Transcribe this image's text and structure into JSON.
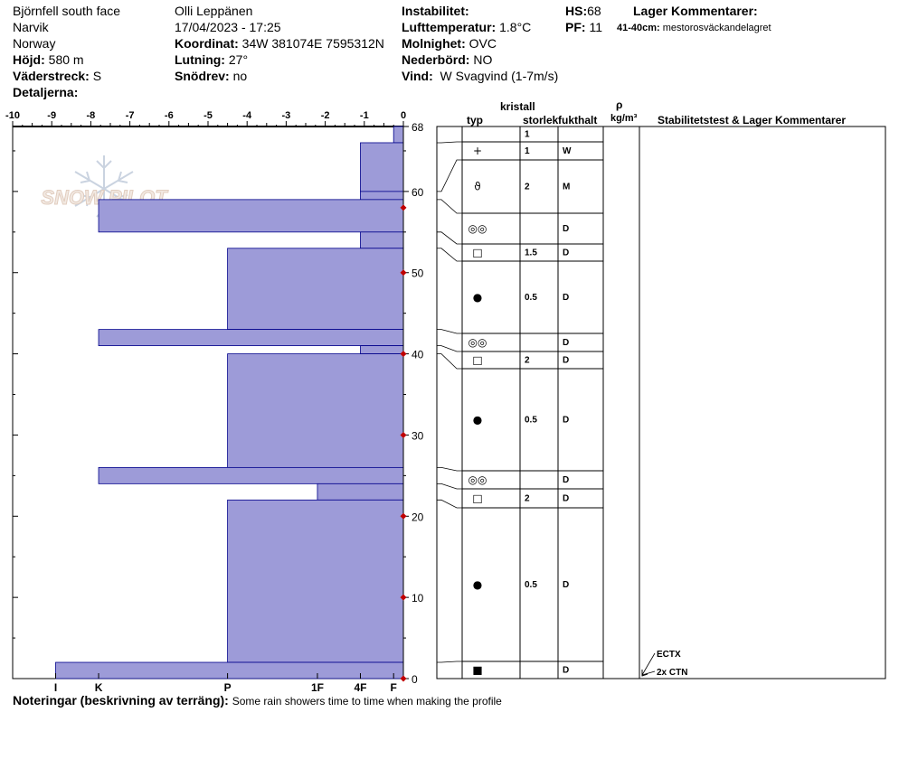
{
  "header": {
    "location": "Björnfell south face",
    "region": "Narvik",
    "country": "Norway",
    "elevation_label": "Höjd:",
    "elevation_value": "580 m",
    "aspect_label": "Väderstreck:",
    "aspect_value": "S",
    "details_label": "Detaljerna:",
    "observer": "Olli Leppänen",
    "datetime": "17/04/2023 - 17:25",
    "coord_label": "Koordinat:",
    "coord_value": "34W 381074E 7595312N",
    "slope_label": "Lutning:",
    "slope_value": "27°",
    "drift_label": "Snödrev:",
    "drift_value": "no",
    "instability_label": "Instabilitet:",
    "airtemp_label": "Lufttemperatur:",
    "airtemp_value": "1.8°C",
    "cloud_label": "Molnighet:",
    "cloud_value": "OVC",
    "precip_label": "Nederbörd:",
    "precip_value": "NO",
    "wind_label": "Vind:",
    "wind_value": "W Svagvind (1-7m/s)",
    "hs_label": "HS:",
    "hs_value": "68",
    "pf_label": "PF:",
    "pf_value": "11",
    "layer_comments_label": "Lager Kommentarer:",
    "layer_comment_depth": "41-40cm:",
    "layer_comment_text": "mestorosväckandelagret"
  },
  "columns": {
    "crystal": "kristall",
    "type": "typ",
    "size": "storlek",
    "moisture": "fukthalt",
    "rho": "ρ",
    "density_unit": "kg/m³",
    "stability": "Stabilitetstest & Lager Kommentarer"
  },
  "watermark": "SNOW PILOT",
  "footer": {
    "notes_label": "Noteringar (beskrivning av terräng):",
    "notes_text": "Some rain showers time to time when making the profile"
  },
  "chart_data": {
    "type": "bar",
    "orientation": "horizontal",
    "xlabel": "",
    "ylabel": "",
    "top_axis_ticks": [
      -10,
      -9,
      -8,
      -7,
      -6,
      -5,
      -4,
      -3,
      -2,
      -1,
      0
    ],
    "xlim": [
      -10,
      0
    ],
    "hardness_labels": [
      "I",
      "K",
      "P",
      "1F",
      "4F",
      "F"
    ],
    "hardness_values": [
      -8.9,
      -7.8,
      -4.5,
      -2.2,
      -1.1,
      -0.25
    ],
    "ylim": [
      0,
      68
    ],
    "height_ticks": [
      68,
      60,
      50,
      40,
      30,
      20,
      10,
      0
    ],
    "layers": [
      {
        "bottom": 66,
        "top": 68,
        "hardness": -0.25,
        "grain": "",
        "size": "1",
        "moisture": ""
      },
      {
        "bottom": 60,
        "top": 66,
        "hardness": -1.1,
        "grain": "+",
        "size": "1",
        "moisture": "W"
      },
      {
        "bottom": 59,
        "top": 60,
        "hardness": -1.1,
        "grain": "ϑ",
        "size": "2",
        "moisture": "M"
      },
      {
        "bottom": 55,
        "top": 59,
        "hardness": -7.8,
        "grain": "◎◎",
        "size": "",
        "moisture": "D"
      },
      {
        "bottom": 53,
        "top": 55,
        "hardness": -1.1,
        "grain": "□",
        "size": "1.5",
        "moisture": "D"
      },
      {
        "bottom": 43,
        "top": 53,
        "hardness": -4.5,
        "grain": "●",
        "size": "0.5",
        "moisture": "D"
      },
      {
        "bottom": 41,
        "top": 43,
        "hardness": -7.8,
        "grain": "◎◎",
        "size": "",
        "moisture": "D"
      },
      {
        "bottom": 40,
        "top": 41,
        "hardness": -1.1,
        "grain": "□",
        "size": "2",
        "moisture": "D"
      },
      {
        "bottom": 26,
        "top": 40,
        "hardness": -4.5,
        "grain": "●",
        "size": "0.5",
        "moisture": "D"
      },
      {
        "bottom": 24,
        "top": 26,
        "hardness": -7.8,
        "grain": "◎◎",
        "size": "",
        "moisture": "D"
      },
      {
        "bottom": 22,
        "top": 24,
        "hardness": -2.2,
        "grain": "□",
        "size": "2",
        "moisture": "D"
      },
      {
        "bottom": 2,
        "top": 22,
        "hardness": -4.5,
        "grain": "●",
        "size": "0.5",
        "moisture": "D"
      },
      {
        "bottom": 0,
        "top": 2,
        "hardness": -8.9,
        "grain": "■",
        "size": "",
        "moisture": "D"
      }
    ],
    "temperature_points": [
      {
        "height": 58,
        "temp": 0
      },
      {
        "height": 50,
        "temp": 0
      },
      {
        "height": 40,
        "temp": 0
      },
      {
        "height": 30,
        "temp": 0
      },
      {
        "height": 20,
        "temp": 0
      },
      {
        "height": 10,
        "temp": 0
      },
      {
        "height": 0,
        "temp": 0
      }
    ],
    "stability_tests": [
      {
        "label": "ECTX",
        "height": 2
      },
      {
        "label": "2x CTN",
        "height": 2
      }
    ],
    "colors": {
      "bar_fill": "#9d9bd8",
      "bar_stroke": "#00008b",
      "temperature": "#c00000"
    }
  }
}
